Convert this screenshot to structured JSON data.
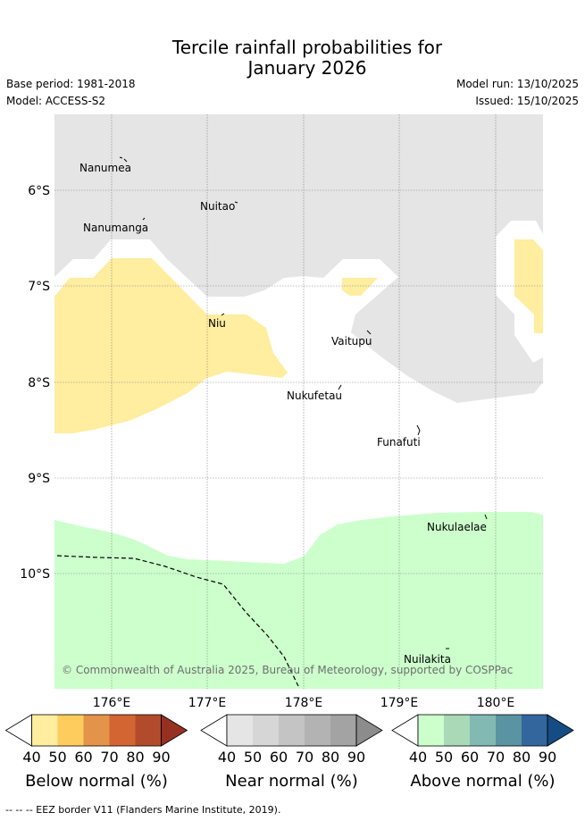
{
  "header": {
    "title_line1": "Tercile rainfall probabilities for",
    "title_line2": "January 2026",
    "base_period": "Base period: 1981-2018",
    "model": "Model: ACCESS-S2",
    "model_run": "Model run: 13/10/2025",
    "issued": "Issued: 15/10/2025"
  },
  "map": {
    "lat_labels": [
      "6°S",
      "7°S",
      "8°S",
      "9°S",
      "10°S"
    ],
    "lon_labels": [
      "176°E",
      "177°E",
      "178°E",
      "179°E",
      "180°E"
    ],
    "places": [
      "Nanumea",
      "Nuitao",
      "Nanumanga",
      "Niu",
      "Vaitupu",
      "Nukufetau",
      "Funafuti",
      "Nukulaelae",
      "Nuilakita"
    ],
    "attribution": "© Commonwealth of Australia 2025, Bureau of Meteorology, supported by COSPPac",
    "colors": {
      "below": "#ffeda0",
      "near": "#e5e5e5",
      "above": "#ccffcc",
      "grid": "#808080"
    }
  },
  "colorbars": [
    {
      "label": "Below normal (%)",
      "ticks": [
        "40",
        "50",
        "60",
        "70",
        "80",
        "90"
      ],
      "colors": [
        "#ffeda0",
        "#fecc5c",
        "#e39449",
        "#d26532",
        "#b14b2c",
        "#963021"
      ]
    },
    {
      "label": "Near normal (%)",
      "ticks": [
        "40",
        "50",
        "60",
        "70",
        "80",
        "90"
      ],
      "colors": [
        "#e5e5e5",
        "#d6d6d6",
        "#c4c4c4",
        "#b3b3b3",
        "#a3a3a3",
        "#8c8c8c"
      ]
    },
    {
      "label": "Above normal (%)",
      "ticks": [
        "40",
        "50",
        "60",
        "70",
        "80",
        "90"
      ],
      "colors": [
        "#ccffcc",
        "#a9d9b6",
        "#82b9b3",
        "#5a93a1",
        "#33669d",
        "#154c83"
      ]
    }
  ],
  "footer": {
    "legend_text": "-- -- -- EEZ border V11 (Flanders Marine Institute, 2019)."
  }
}
